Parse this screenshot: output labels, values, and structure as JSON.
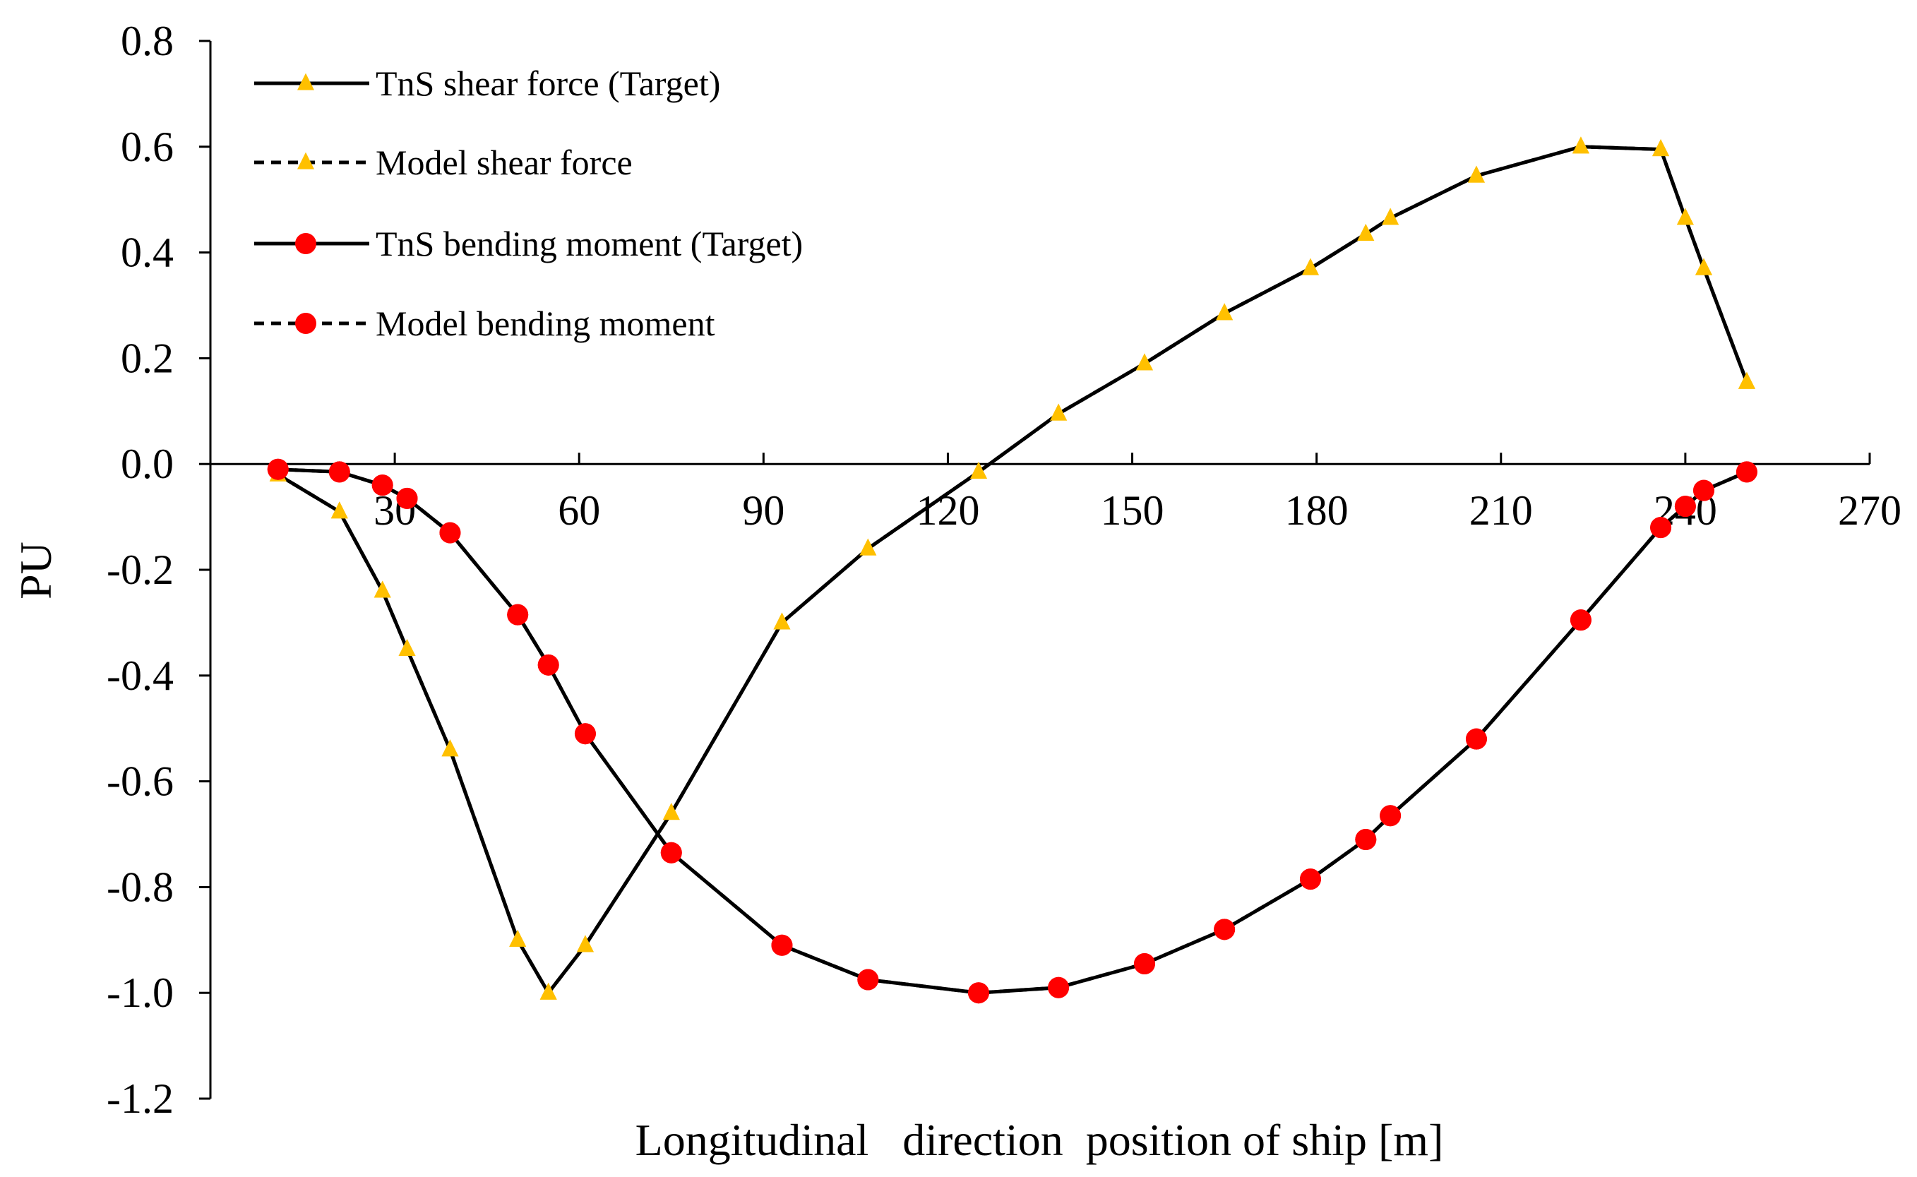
{
  "chart_data": {
    "type": "line",
    "title": "",
    "xlabel": "Longitudinal   direction  position of ship [m]",
    "ylabel": "PU",
    "xlim": [
      0,
      270
    ],
    "ylim": [
      -1.2,
      0.8
    ],
    "x_ticks": [
      "30",
      "60",
      "90",
      "120",
      "150",
      "180",
      "210",
      "240",
      "270"
    ],
    "y_ticks": [
      "0.8",
      "0.6",
      "0.4",
      "0.2",
      "0.0",
      "-0.2",
      "-0.4",
      "-0.6",
      "-0.8",
      "-1.0",
      "-1.2"
    ],
    "grid": false,
    "legend_position": "top-left",
    "series": [
      {
        "name": "TnS shear force (Target)",
        "line": "solid",
        "marker": "triangle",
        "marker_color": "#FFC000",
        "x": [
          11,
          21,
          28,
          32,
          39,
          50,
          55,
          61,
          75,
          93,
          107,
          125,
          138,
          152,
          165,
          179,
          188,
          192,
          206,
          223,
          236,
          240,
          243,
          250
        ],
        "y": [
          -0.02,
          -0.09,
          -0.24,
          -0.35,
          -0.54,
          -0.9,
          -1.0,
          -0.91,
          -0.66,
          -0.3,
          -0.16,
          -0.015,
          0.095,
          0.19,
          0.285,
          0.37,
          0.435,
          0.465,
          0.545,
          0.6,
          0.595,
          0.465,
          0.37,
          0.155
        ]
      },
      {
        "name": "Model shear force",
        "line": "dashed",
        "marker": "triangle",
        "marker_color": "#FFC000",
        "x": [
          11,
          21,
          28,
          32,
          39,
          50,
          55,
          61,
          75,
          93,
          107,
          125,
          138,
          152,
          165,
          179,
          188,
          192,
          206,
          223,
          236,
          240,
          243,
          250
        ],
        "y": [
          -0.02,
          -0.09,
          -0.24,
          -0.35,
          -0.54,
          -0.9,
          -1.0,
          -0.91,
          -0.66,
          -0.3,
          -0.16,
          -0.015,
          0.095,
          0.19,
          0.285,
          0.37,
          0.435,
          0.465,
          0.545,
          0.6,
          0.595,
          0.465,
          0.37,
          0.155
        ]
      },
      {
        "name": "TnS bending moment (Target)",
        "line": "solid",
        "marker": "circle",
        "marker_color": "#FF0000",
        "x": [
          11,
          21,
          28,
          32,
          39,
          50,
          55,
          61,
          75,
          93,
          107,
          125,
          138,
          152,
          165,
          179,
          188,
          192,
          206,
          223,
          236,
          240,
          243,
          250
        ],
        "y": [
          -0.01,
          -0.015,
          -0.04,
          -0.065,
          -0.13,
          -0.285,
          -0.38,
          -0.51,
          -0.735,
          -0.91,
          -0.975,
          -1.0,
          -0.99,
          -0.945,
          -0.88,
          -0.785,
          -0.71,
          -0.665,
          -0.52,
          -0.295,
          -0.12,
          -0.08,
          -0.05,
          -0.015
        ]
      },
      {
        "name": "Model bending moment",
        "line": "dashed",
        "marker": "circle",
        "marker_color": "#FF0000",
        "x": [
          11,
          21,
          28,
          32,
          39,
          50,
          55,
          61,
          75,
          93,
          107,
          125,
          138,
          152,
          165,
          179,
          188,
          192,
          206,
          223,
          236,
          240,
          243,
          250
        ],
        "y": [
          -0.01,
          -0.015,
          -0.04,
          -0.065,
          -0.13,
          -0.285,
          -0.38,
          -0.51,
          -0.735,
          -0.91,
          -0.975,
          -1.0,
          -0.99,
          -0.945,
          -0.88,
          -0.785,
          -0.71,
          -0.665,
          -0.52,
          -0.295,
          -0.12,
          -0.08,
          -0.05,
          -0.015
        ]
      }
    ]
  }
}
